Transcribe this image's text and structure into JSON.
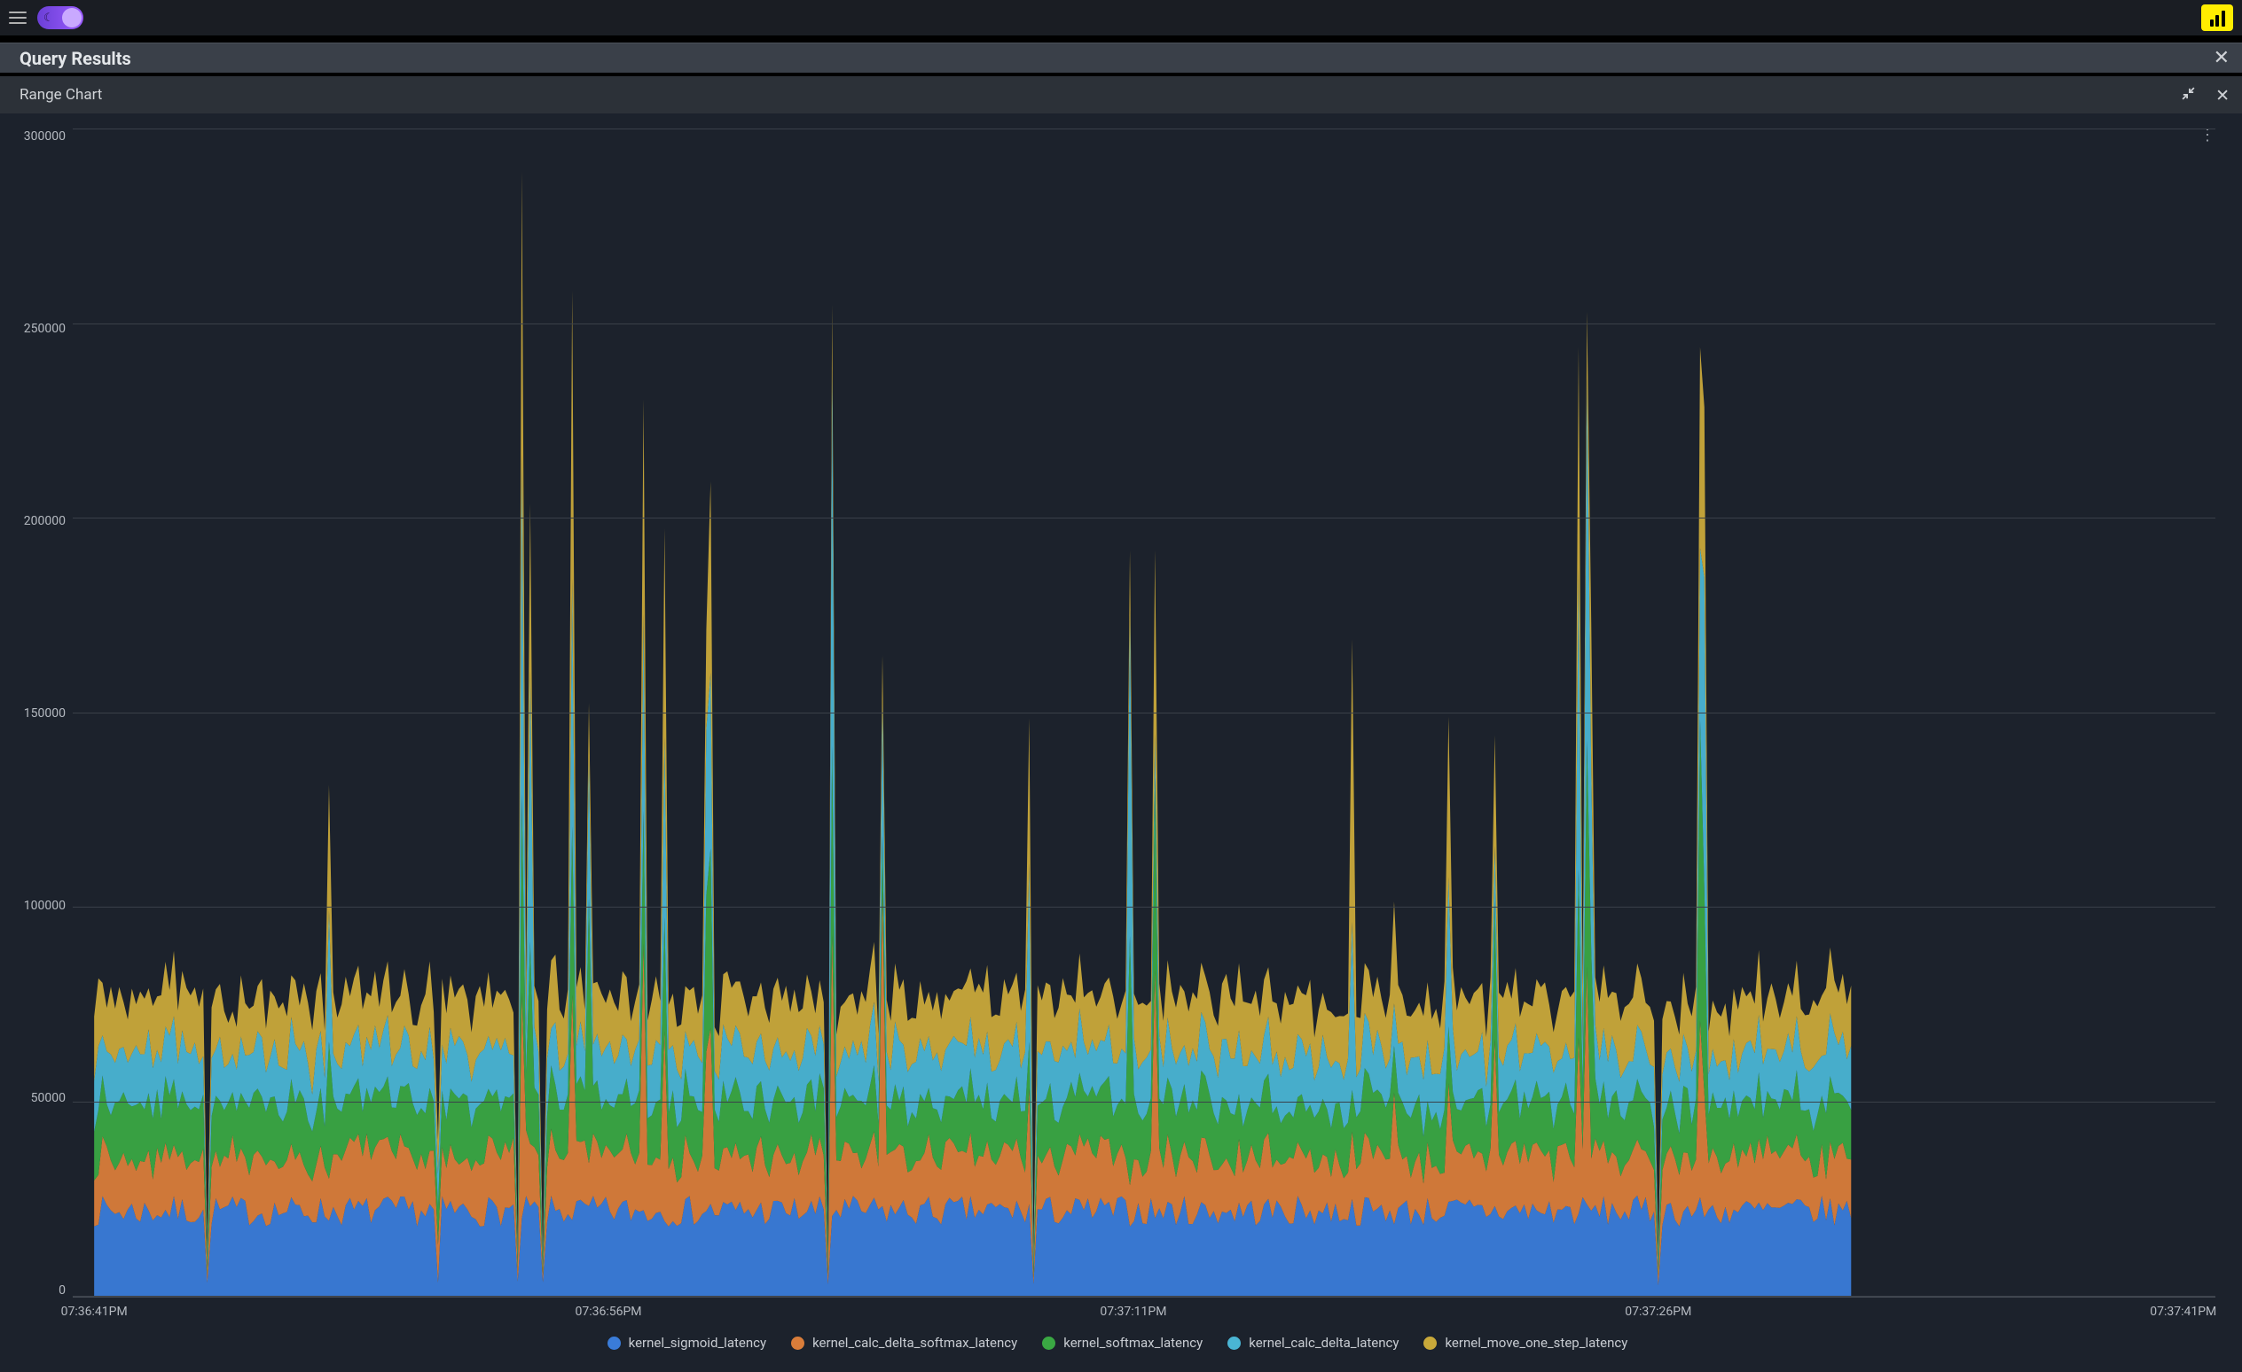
{
  "topbar": {
    "dark_mode_on": true
  },
  "panel": {
    "title": "Query Results",
    "chart_title": "Range Chart"
  },
  "colors": {
    "bg_app": "#000000",
    "bg_chart": "#1c222c",
    "grid": "#3a4049",
    "text": "#b4b9c0"
  },
  "chart": {
    "type": "stacked_area",
    "ylabel_fontsize": 14,
    "ylim": [
      0,
      300000
    ],
    "yticks": [
      0,
      50000,
      100000,
      150000,
      200000,
      250000,
      300000
    ],
    "xticks": [
      "07:36:41PM",
      "07:36:56PM",
      "07:37:11PM",
      "07:37:26PM",
      "07:37:41PM"
    ],
    "xtick_positions_pct": [
      1,
      25,
      49.5,
      74,
      98.5
    ],
    "data_x_extent_pct": [
      1,
      83
    ],
    "series": [
      {
        "key": "kernel_sigmoid_latency",
        "label": "kernel_sigmoid_latency",
        "color": "#3a7cd9"
      },
      {
        "key": "kernel_calc_delta_softmax_latency",
        "label": "kernel_calc_delta_softmax_latency",
        "color": "#d97d3a"
      },
      {
        "key": "kernel_softmax_latency",
        "label": "kernel_softmax_latency",
        "color": "#3aa843"
      },
      {
        "key": "kernel_calc_delta_latency",
        "label": "kernel_calc_delta_latency",
        "color": "#4ab5d4"
      },
      {
        "key": "kernel_move_one_step_latency",
        "label": "kernel_move_one_step_latency",
        "color": "#c9a93a"
      }
    ],
    "n_samples": 420,
    "baseline_per_series": [
      22000,
      14000,
      14000,
      13000,
      14000
    ],
    "jitter_per_series": [
      4000,
      3500,
      3500,
      3500,
      3500
    ],
    "spike_probability": 0.055,
    "spike_height_range": [
      60000,
      190000
    ],
    "rng_seed": 7
  }
}
